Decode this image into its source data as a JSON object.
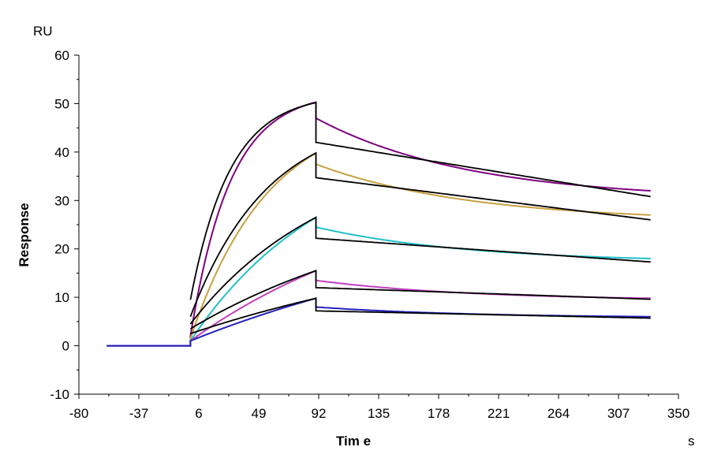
{
  "chart_data": {
    "type": "line",
    "title": "",
    "xlabel": "Tim e",
    "ylabel": "Response",
    "x_unit": "s",
    "y_unit": "RU",
    "xlim": [
      -80,
      350
    ],
    "ylim": [
      -10,
      60
    ],
    "x_ticks": [
      -80,
      -37,
      6,
      49,
      92,
      135,
      178,
      221,
      264,
      307,
      350
    ],
    "y_ticks": [
      -10,
      0,
      10,
      20,
      30,
      40,
      50,
      60
    ],
    "grid": false,
    "legend": "none",
    "injection_start": 0,
    "injection_end": 90,
    "x_start": -60,
    "x_end": 330,
    "series": [
      {
        "color": "#800080",
        "values": {
          "baseline": 0,
          "contact_start": 2,
          "contact_end": 50.3,
          "dissociation_start": 47,
          "dissociation_end": 32
        }
      },
      {
        "color": "#C8A040",
        "values": {
          "baseline": 0,
          "contact_start": 1.5,
          "contact_end": 39.8,
          "dissociation_start": 37.5,
          "dissociation_end": 27
        }
      },
      {
        "color": "#20C0C8",
        "values": {
          "baseline": 0,
          "contact_start": 1,
          "contact_end": 26.5,
          "dissociation_start": 24.5,
          "dissociation_end": 18
        }
      },
      {
        "color": "#C040C0",
        "values": {
          "baseline": 0,
          "contact_start": 1,
          "contact_end": 15.5,
          "dissociation_start": 13.5,
          "dissociation_end": 9.8
        }
      },
      {
        "color": "#2020C0",
        "values": {
          "baseline": 0,
          "contact_start": 1,
          "contact_end": 9.8,
          "dissociation_start": 8,
          "dissociation_end": 6
        }
      }
    ],
    "fits": [
      {
        "color": "#000000",
        "values": {
          "contact_start": 9.5,
          "contact_end": 50.2,
          "dissociation_start": 42,
          "dissociation_end": 30.8
        }
      },
      {
        "color": "#000000",
        "values": {
          "contact_start": 6.0,
          "contact_end": 39.8,
          "dissociation_start": 34.7,
          "dissociation_end": 26
        }
      },
      {
        "color": "#000000",
        "values": {
          "contact_start": 4.5,
          "contact_end": 26.5,
          "dissociation_start": 22.2,
          "dissociation_end": 17.3
        }
      },
      {
        "color": "#000000",
        "values": {
          "contact_start": 3.5,
          "contact_end": 15.5,
          "dissociation_start": 12.0,
          "dissociation_end": 9.6
        }
      },
      {
        "color": "#000000",
        "values": {
          "contact_start": 2.5,
          "contact_end": 9.8,
          "dissociation_start": 7.2,
          "dissociation_end": 5.7
        }
      }
    ]
  }
}
